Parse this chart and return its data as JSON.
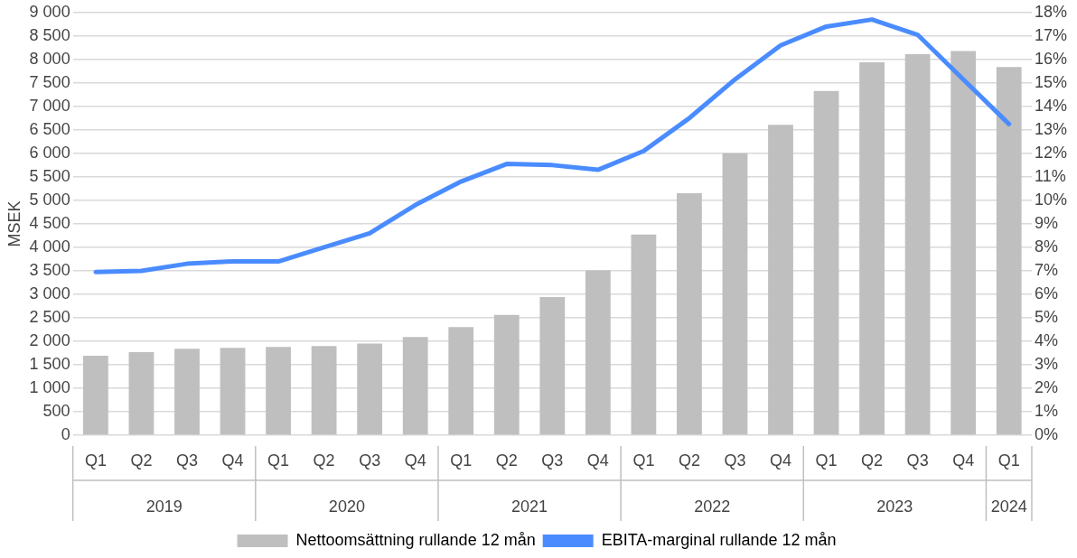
{
  "chart_data": {
    "type": "bar",
    "ylabel": "MSEK",
    "categories": [
      "Q1",
      "Q2",
      "Q3",
      "Q4",
      "Q1",
      "Q2",
      "Q3",
      "Q4",
      "Q1",
      "Q2",
      "Q3",
      "Q4",
      "Q1",
      "Q2",
      "Q3",
      "Q4",
      "Q1",
      "Q2",
      "Q3",
      "Q4",
      "Q1"
    ],
    "annotations": [
      "2019",
      "2020",
      "2021",
      "2022",
      "2023",
      "2024"
    ],
    "series": [
      {
        "name": "Nettoomsättning rullande 12 mån",
        "color": "#bfbfbf",
        "values": [
          1690,
          1770,
          1840,
          1860,
          1880,
          1900,
          1950,
          2090,
          2300,
          2560,
          2940,
          3510,
          4270,
          5150,
          6000,
          6610,
          7330,
          7940,
          8110,
          8180,
          7840
        ]
      },
      {
        "name": "EBITA-marginal rullande 12 mån",
        "type": "line",
        "axis": "y2",
        "color": "#4a8cff",
        "values": [
          6.95,
          7.0,
          7.3,
          7.4,
          7.4,
          8.0,
          8.6,
          9.8,
          10.8,
          11.55,
          11.5,
          11.3,
          12.1,
          13.5,
          15.15,
          16.6,
          17.4,
          17.7,
          17.05,
          15.15,
          13.25
        ]
      }
    ],
    "ylim": [
      0,
      9000
    ],
    "yticks": [
      0,
      500,
      {
        "value": 1000,
        "label": "1 000"
      },
      {
        "value": 1500,
        "label": "1 500"
      },
      {
        "value": 2000,
        "label": "2 000"
      },
      {
        "value": 2500,
        "label": "2 500"
      },
      {
        "value": 3000,
        "label": "3 000"
      },
      {
        "value": 3500,
        "label": "3 500"
      },
      {
        "value": 4000,
        "label": "4 000"
      },
      {
        "value": 4500,
        "label": "4 500"
      },
      {
        "value": 5000,
        "label": "5 000"
      },
      {
        "value": 5500,
        "label": "5 500"
      },
      {
        "value": 6000,
        "label": "6 000"
      },
      {
        "value": 6500,
        "label": "6 500"
      },
      {
        "value": 7000,
        "label": "7 000"
      },
      {
        "value": 7500,
        "label": "7 500"
      },
      {
        "value": 8000,
        "label": "8 000"
      },
      {
        "value": 8500,
        "label": "8 500"
      },
      {
        "value": 9000,
        "label": "9 000"
      }
    ],
    "y2lim": [
      0,
      18
    ],
    "y2ticks": [
      {
        "value": 0,
        "label": "0%"
      },
      {
        "value": 1,
        "label": "1%"
      },
      {
        "value": 2,
        "label": "2%"
      },
      {
        "value": 3,
        "label": "3%"
      },
      {
        "value": 4,
        "label": "4%"
      },
      {
        "value": 5,
        "label": "5%"
      },
      {
        "value": 6,
        "label": "6%"
      },
      {
        "value": 7,
        "label": "7%"
      },
      {
        "value": 8,
        "label": "8%"
      },
      {
        "value": 9,
        "label": "9%"
      },
      {
        "value": 10,
        "label": "10%"
      },
      {
        "value": 11,
        "label": "11%"
      },
      {
        "value": 12,
        "label": "12%"
      },
      {
        "value": 13,
        "label": "13%"
      },
      {
        "value": 14,
        "label": "14%"
      },
      {
        "value": 15,
        "label": "15%"
      },
      {
        "value": 16,
        "label": "16%"
      },
      {
        "value": 17,
        "label": "17%"
      },
      {
        "value": 18,
        "label": "18%"
      }
    ],
    "grid": "y",
    "legend": "bottom",
    "marker": "none",
    "line_style": "solid"
  }
}
